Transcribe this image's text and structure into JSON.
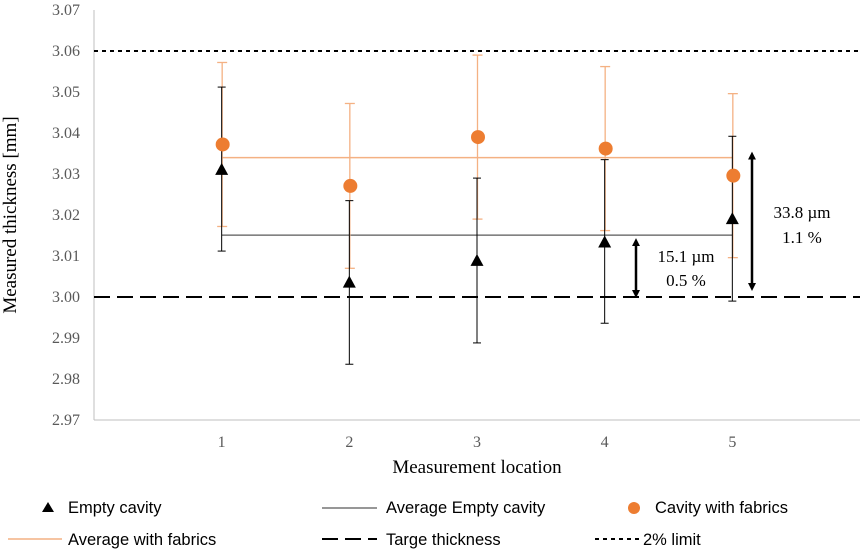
{
  "chart_data": {
    "type": "scatter",
    "xlabel": "Measurement location",
    "ylabel": "Measured thickness [mm]",
    "x": [
      1,
      2,
      3,
      4,
      5
    ],
    "xlim": [
      0,
      6
    ],
    "ylim": [
      2.97,
      3.07
    ],
    "yticks": [
      "2.97",
      "2.98",
      "2.99",
      "3.00",
      "3.01",
      "3.02",
      "3.03",
      "3.04",
      "3.05",
      "3.06",
      "3.07"
    ],
    "xticks": [
      "1",
      "2",
      "3",
      "4",
      "5"
    ],
    "grid": false,
    "colors": {
      "empty": "#000000",
      "fabric": "#ED7D31",
      "axis": "#BFBFBF"
    },
    "series": [
      {
        "name": "Empty cavity",
        "marker": "triangle",
        "values": [
          3.031,
          3.0035,
          3.0088,
          3.0133,
          3.019
        ],
        "err_low": [
          3.0112,
          2.9836,
          2.9888,
          2.9936,
          2.999
        ],
        "err_high": [
          3.0512,
          3.0235,
          3.029,
          3.0335,
          3.0392
        ]
      },
      {
        "name": "Cavity with fabrics",
        "marker": "circle",
        "values": [
          3.0372,
          3.0271,
          3.039,
          3.0362,
          3.0296
        ],
        "err_low": [
          3.0172,
          3.007,
          3.019,
          3.0162,
          3.0096
        ],
        "err_high": [
          3.0572,
          3.0472,
          3.059,
          3.0562,
          3.0496
        ]
      }
    ],
    "lines": [
      {
        "name": "Average Empty cavity",
        "y": 3.0151,
        "style": "solid-black"
      },
      {
        "name": "Average with fabrics",
        "y": 3.034,
        "style": "solid-orange"
      },
      {
        "name": "Targe thickness",
        "y": 3.0,
        "style": "long-dash"
      },
      {
        "name": "2% limit",
        "y": 3.06,
        "style": "short-dash"
      }
    ],
    "annotations": [
      {
        "line1": "15.1 µm",
        "line2": "0.5 %",
        "y_from": 3.0,
        "y_to": 3.0151
      },
      {
        "line1": "33.8 µm",
        "line2": "1.1 %",
        "y_from": 3.0,
        "y_to": 3.034
      }
    ],
    "legend": [
      {
        "label": "Empty cavity",
        "symbol": "triangle"
      },
      {
        "label": "Average Empty cavity",
        "symbol": "solid-black"
      },
      {
        "label": "Cavity with fabrics",
        "symbol": "circle"
      },
      {
        "label": "Average with fabrics",
        "symbol": "solid-orange"
      },
      {
        "label": "Targe thickness",
        "symbol": "long-dash"
      },
      {
        "label": "2% limit",
        "symbol": "short-dash"
      }
    ]
  }
}
